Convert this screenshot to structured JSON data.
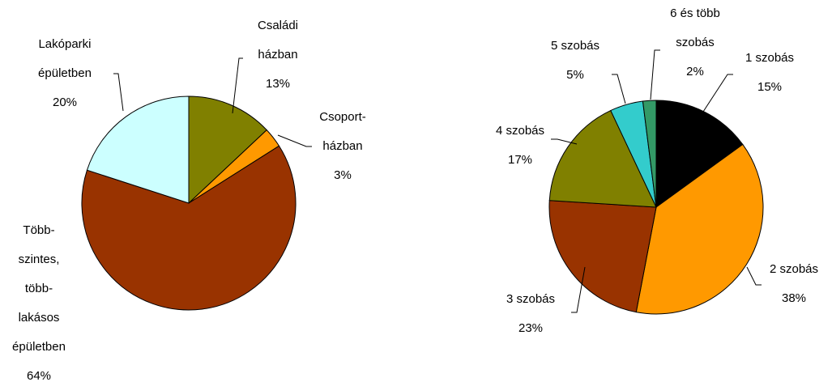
{
  "chart_data": [
    {
      "type": "pie",
      "categories": [
        [
          "Családi",
          "házban"
        ],
        [
          "Csoport-",
          "házban"
        ],
        [
          "Több-",
          "szintes,",
          "több-",
          "lakásos",
          "épületben"
        ],
        [
          "Lakóparki",
          "épületben"
        ]
      ],
      "values": [
        13,
        3,
        64,
        20
      ],
      "value_labels": [
        "13%",
        "3%",
        "64%",
        "20%"
      ],
      "colors": [
        "#808000",
        "#ff9900",
        "#993300",
        "#ccffff"
      ]
    },
    {
      "type": "pie",
      "categories": [
        [
          "1 szobás"
        ],
        [
          "2 szobás"
        ],
        [
          "3 szobás"
        ],
        [
          "4 szobás"
        ],
        [
          "5 szobás"
        ],
        [
          "6 és több",
          "szobás"
        ]
      ],
      "values": [
        15,
        38,
        23,
        17,
        5,
        2
      ],
      "value_labels": [
        "15%",
        "38%",
        "23%",
        "17%",
        "5%",
        "2%"
      ],
      "colors": [
        "#000000",
        "#ff9900",
        "#993300",
        "#808000",
        "#33cccc",
        "#339966"
      ]
    }
  ]
}
